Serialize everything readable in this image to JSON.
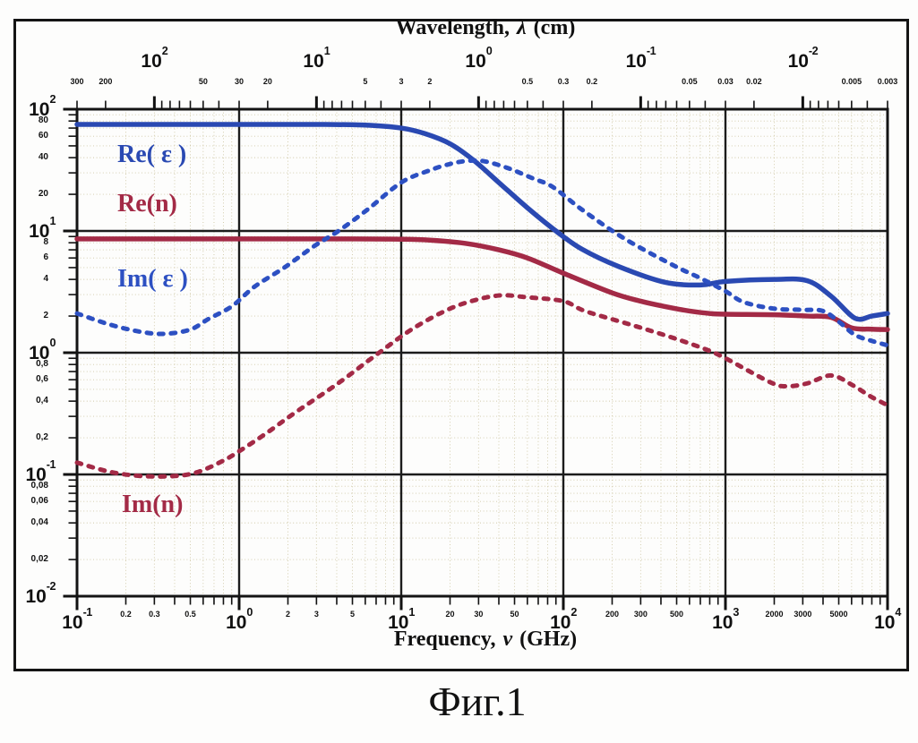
{
  "figure": {
    "caption": "Фиг.1"
  },
  "chart_data": {
    "type": "line",
    "scale": "log-log",
    "grid": "major-black, minor-dotted",
    "title_top": {
      "prefix": "Wavelength,",
      "symbol": "λ",
      "suffix": "(cm)"
    },
    "title_bottom": {
      "prefix": "Frequency,",
      "symbol": "ν",
      "suffix": "(GHz)"
    },
    "x_axis_bottom": {
      "unit": "GHz",
      "min": 0.1,
      "max": 10000,
      "major_ticks": [
        0.1,
        1,
        10,
        100,
        1000,
        10000
      ],
      "labeled_minor_ticks": [
        0.2,
        0.3,
        0.5,
        2,
        3,
        5,
        20,
        30,
        50,
        200,
        300,
        500,
        2000,
        3000,
        5000
      ]
    },
    "x_axis_top": {
      "unit": "cm",
      "relation": "lambda = 30 / frequency_GHz",
      "major_ticks": [
        100,
        10,
        1,
        0.1,
        0.01
      ],
      "labeled_minor_ticks": [
        300,
        200,
        50,
        30,
        20,
        5,
        3,
        2,
        0.5,
        0.3,
        0.2,
        0.05,
        0.03,
        0.02,
        0.005,
        0.003
      ]
    },
    "y_axis": {
      "min": 0.01,
      "max": 100,
      "major_ticks": [
        100,
        10,
        1,
        0.1,
        0.01
      ],
      "labeled_minor_ticks": [
        80,
        60,
        40,
        20,
        8,
        6,
        4,
        2,
        0.8,
        0.6,
        0.4,
        0.2,
        0.08,
        0.06,
        0.04,
        0.02
      ],
      "decimal_separator": ","
    },
    "series": [
      {
        "name": "Re_epsilon",
        "label": "Re( ε )",
        "color": "#2a49b2",
        "style": "solid",
        "points": [
          [
            0.1,
            75
          ],
          [
            0.3,
            75
          ],
          [
            1,
            75
          ],
          [
            3,
            75
          ],
          [
            6,
            74
          ],
          [
            10,
            70
          ],
          [
            14,
            63
          ],
          [
            20,
            52
          ],
          [
            28,
            38
          ],
          [
            40,
            25
          ],
          [
            60,
            15.5
          ],
          [
            90,
            10
          ],
          [
            130,
            7.1
          ],
          [
            220,
            5.1
          ],
          [
            420,
            3.8
          ],
          [
            700,
            3.6
          ],
          [
            1000,
            3.85
          ],
          [
            2000,
            4.0
          ],
          [
            3200,
            3.9
          ],
          [
            4500,
            2.9
          ],
          [
            6300,
            1.92
          ],
          [
            8000,
            2.0
          ],
          [
            10000,
            2.1
          ]
        ]
      },
      {
        "name": "Re_n",
        "label": "Re(n)",
        "color": "#a32a46",
        "style": "solid",
        "points": [
          [
            0.1,
            8.6
          ],
          [
            1,
            8.6
          ],
          [
            5,
            8.6
          ],
          [
            10,
            8.55
          ],
          [
            15,
            8.4
          ],
          [
            25,
            7.9
          ],
          [
            40,
            7.0
          ],
          [
            60,
            6.0
          ],
          [
            100,
            4.5
          ],
          [
            200,
            3.1
          ],
          [
            300,
            2.65
          ],
          [
            420,
            2.4
          ],
          [
            600,
            2.2
          ],
          [
            800,
            2.1
          ],
          [
            1000,
            2.07
          ],
          [
            2000,
            2.05
          ],
          [
            3200,
            2.0
          ],
          [
            4500,
            1.95
          ],
          [
            6000,
            1.6
          ],
          [
            8000,
            1.56
          ],
          [
            10000,
            1.55
          ]
        ]
      },
      {
        "name": "Im_epsilon",
        "label": "Im( ε )",
        "color": "#2d50c2",
        "style": "dashed",
        "points": [
          [
            0.1,
            2.1
          ],
          [
            0.16,
            1.7
          ],
          [
            0.25,
            1.48
          ],
          [
            0.35,
            1.43
          ],
          [
            0.5,
            1.55
          ],
          [
            0.65,
            1.9
          ],
          [
            0.9,
            2.4
          ],
          [
            1.25,
            3.5
          ],
          [
            1.9,
            5.0
          ],
          [
            2.9,
            7.5
          ],
          [
            4.1,
            10
          ],
          [
            6.2,
            15
          ],
          [
            10,
            25
          ],
          [
            15,
            31.5
          ],
          [
            20,
            35.5
          ],
          [
            25,
            37.5
          ],
          [
            32,
            37.5
          ],
          [
            45,
            33
          ],
          [
            65,
            27
          ],
          [
            86,
            23
          ],
          [
            130,
            15
          ],
          [
            240,
            8.6
          ],
          [
            480,
            5.2
          ],
          [
            700,
            4.1
          ],
          [
            1000,
            3.2
          ],
          [
            1300,
            2.6
          ],
          [
            2000,
            2.3
          ],
          [
            3000,
            2.25
          ],
          [
            4000,
            2.2
          ],
          [
            5000,
            1.8
          ],
          [
            6300,
            1.4
          ],
          [
            8000,
            1.25
          ],
          [
            10000,
            1.15
          ]
        ]
      },
      {
        "name": "Im_n",
        "label": "Im(n)",
        "color": "#a32a46",
        "style": "dashed",
        "points": [
          [
            0.1,
            0.125
          ],
          [
            0.16,
            0.105
          ],
          [
            0.25,
            0.097
          ],
          [
            0.4,
            0.097
          ],
          [
            0.56,
            0.105
          ],
          [
            0.8,
            0.13
          ],
          [
            1.0,
            0.155
          ],
          [
            1.45,
            0.215
          ],
          [
            2.2,
            0.32
          ],
          [
            4.0,
            0.55
          ],
          [
            7.3,
            1.0
          ],
          [
            12,
            1.6
          ],
          [
            20,
            2.3
          ],
          [
            30,
            2.75
          ],
          [
            42,
            2.96
          ],
          [
            60,
            2.85
          ],
          [
            100,
            2.65
          ],
          [
            136,
            2.2
          ],
          [
            260,
            1.7
          ],
          [
            470,
            1.33
          ],
          [
            750,
            1.07
          ],
          [
            1000,
            0.9
          ],
          [
            1900,
            0.57
          ],
          [
            2400,
            0.53
          ],
          [
            3200,
            0.56
          ],
          [
            4500,
            0.65
          ],
          [
            6100,
            0.54
          ],
          [
            7800,
            0.44
          ],
          [
            10000,
            0.37
          ]
        ]
      }
    ]
  }
}
